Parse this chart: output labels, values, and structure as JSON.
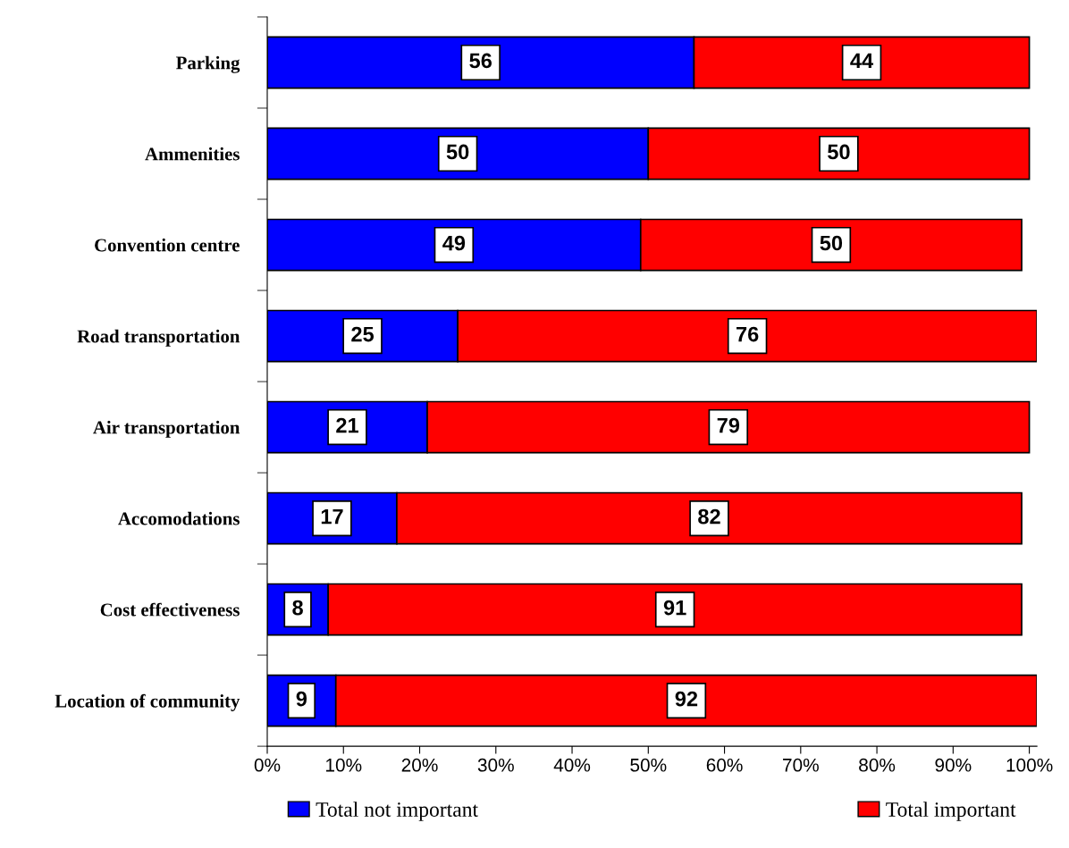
{
  "chart_data": {
    "type": "bar",
    "orientation": "horizontal",
    "stacked": true,
    "categories": [
      "Parking",
      "Ammenities",
      "Convention centre",
      "Road transportation",
      "Air transportation",
      "Accomodations",
      "Cost effectiveness",
      "Location of community"
    ],
    "series": [
      {
        "name": "Total not important",
        "color": "#0000ff",
        "values": [
          56,
          50,
          49,
          25,
          21,
          17,
          8,
          9
        ]
      },
      {
        "name": "Total important",
        "color": "#ff0000",
        "values": [
          44,
          50,
          50,
          76,
          79,
          82,
          91,
          92
        ]
      }
    ],
    "xlim": [
      0,
      101
    ],
    "xticks": [
      {
        "value": 0,
        "label": "0%"
      },
      {
        "value": 10,
        "label": "10%"
      },
      {
        "value": 20,
        "label": "20%"
      },
      {
        "value": 30,
        "label": "30%"
      },
      {
        "value": 40,
        "label": "40%"
      },
      {
        "value": 50,
        "label": "50%"
      },
      {
        "value": 60,
        "label": "60%"
      },
      {
        "value": 70,
        "label": "70%"
      },
      {
        "value": 80,
        "label": "80%"
      },
      {
        "value": 90,
        "label": "90%"
      },
      {
        "value": 100,
        "label": "100%"
      }
    ],
    "data_labels": true,
    "legend": "bottom",
    "grid": false
  }
}
